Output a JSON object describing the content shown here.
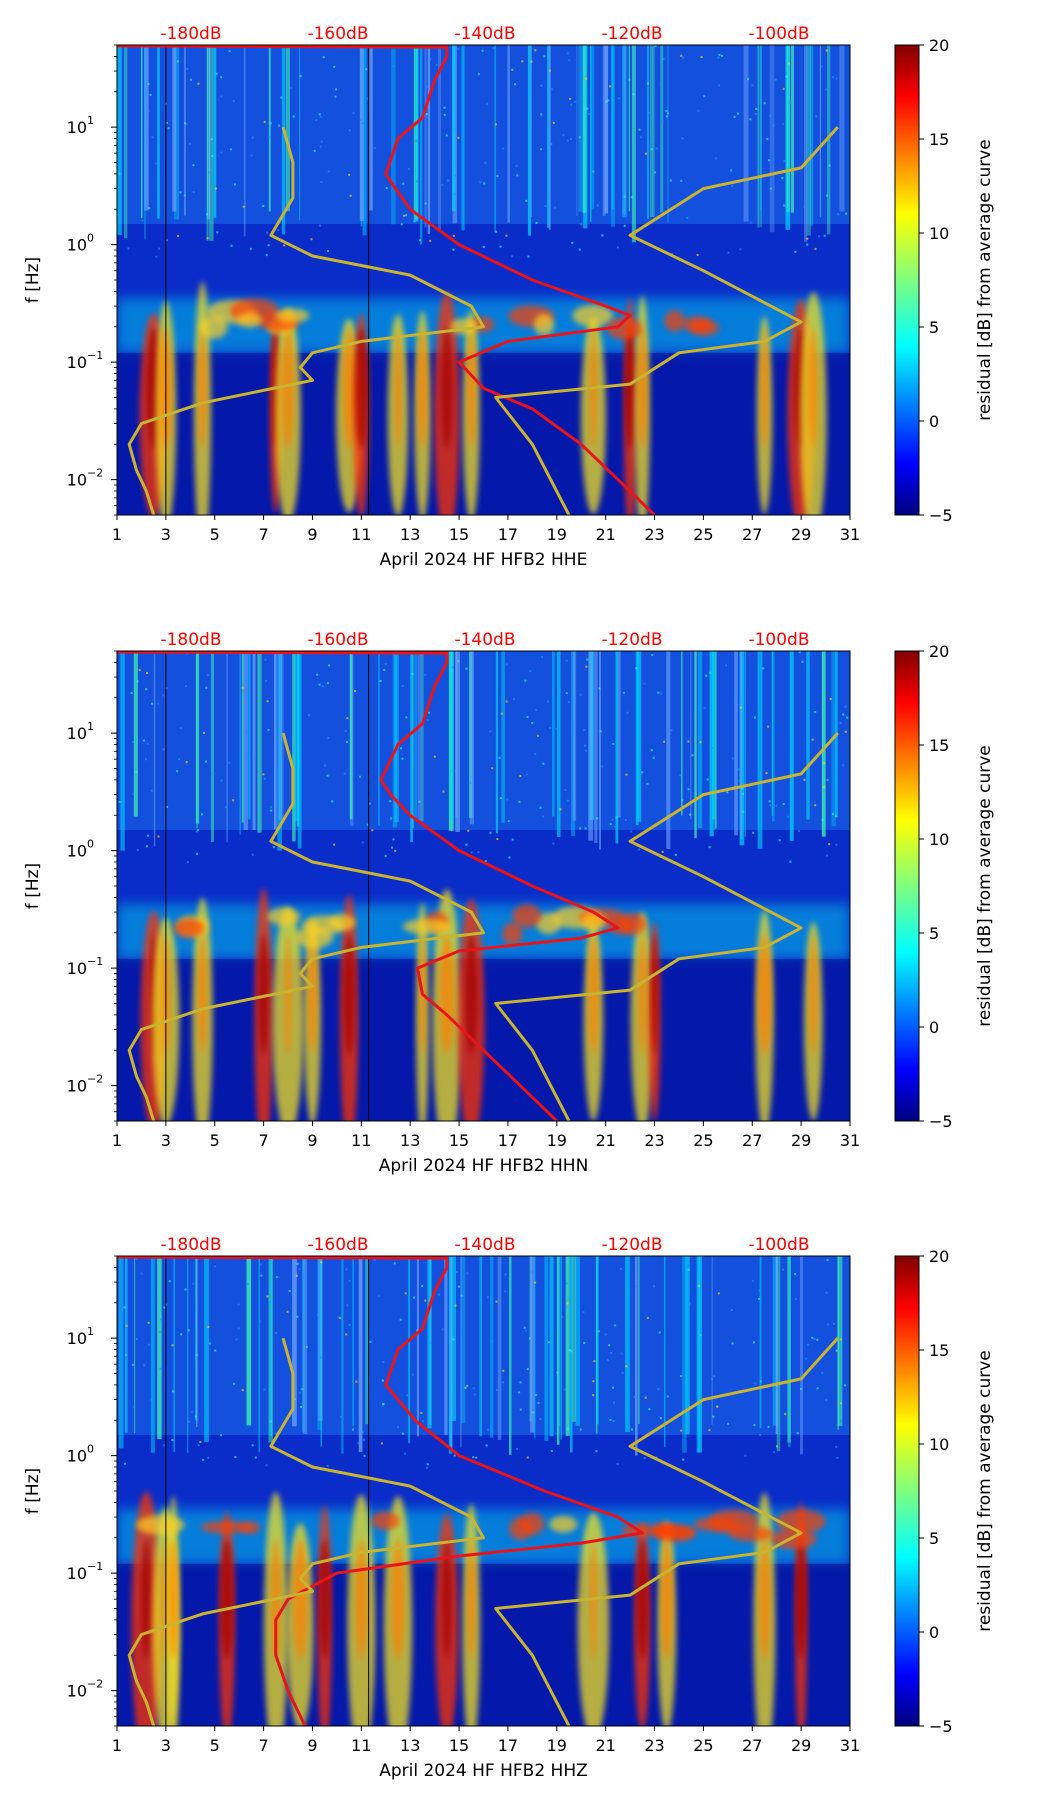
{
  "chart_data": [
    {
      "type": "heatmap",
      "xlabel": "April 2024 HF HFB2  HHE",
      "ylabel": "f [Hz]",
      "x_ticks": [
        "1",
        "3",
        "5",
        "7",
        "9",
        "11",
        "13",
        "15",
        "17",
        "19",
        "21",
        "23",
        "25",
        "27",
        "29",
        "31"
      ],
      "xlim": [
        1,
        31
      ],
      "ylim": [
        0.005,
        50
      ],
      "y_scale": "log",
      "y_ticks": [
        {
          "value": 10,
          "label": "10",
          "exp": "1"
        },
        {
          "value": 1,
          "label": "10",
          "exp": "0"
        },
        {
          "value": 0.1,
          "label": "10",
          "exp": "−1"
        },
        {
          "value": 0.01,
          "label": "10",
          "exp": "−2"
        }
      ],
      "top_labels": [
        "-180dB",
        "-160dB",
        "-140dB",
        "-120dB",
        "-100dB"
      ],
      "colorbar": {
        "label": "residual [dB] from average curve",
        "min": -5,
        "max": 20,
        "ticks": [
          "20",
          "15",
          "10",
          "5",
          "0",
          "−5"
        ]
      },
      "series": [
        {
          "name": "red-curve",
          "color": "#e8141c",
          "points": [
            [
              1,
              49
            ],
            [
              14.5,
              48
            ],
            [
              14.5,
              40
            ],
            [
              14,
              25
            ],
            [
              13.5,
              12
            ],
            [
              12.5,
              8
            ],
            [
              12,
              4
            ],
            [
              12.4,
              3
            ],
            [
              13,
              2
            ],
            [
              15,
              1
            ],
            [
              18,
              0.5
            ],
            [
              21,
              0.3
            ],
            [
              22,
              0.25
            ],
            [
              21.5,
              0.2
            ],
            [
              17,
              0.15
            ],
            [
              15,
              0.1
            ],
            [
              16,
              0.06
            ],
            [
              18,
              0.04
            ],
            [
              20,
              0.02
            ],
            [
              21.5,
              0.01
            ],
            [
              23,
              0.005
            ]
          ]
        },
        {
          "name": "olive-curve",
          "color": "#c8b432",
          "points": [
            [
              7.8,
              10
            ],
            [
              8.2,
              5
            ],
            [
              8.2,
              2.5
            ],
            [
              7.3,
              1.2
            ],
            [
              9,
              0.8
            ],
            [
              13,
              0.55
            ],
            [
              15.5,
              0.3
            ],
            [
              16,
              0.2
            ],
            [
              11,
              0.15
            ],
            [
              9,
              0.12
            ],
            [
              8.5,
              0.09
            ],
            [
              9,
              0.07
            ],
            [
              4.5,
              0.045
            ],
            [
              2,
              0.03
            ],
            [
              1.5,
              0.02
            ],
            [
              1.8,
              0.012
            ],
            [
              2.2,
              0.008
            ],
            [
              2.5,
              0.005
            ]
          ]
        },
        {
          "name": "olive-curve-right",
          "color": "#c8b432",
          "points": [
            [
              30.5,
              10
            ],
            [
              29,
              4.5
            ],
            [
              25,
              3
            ],
            [
              22,
              1.2
            ],
            [
              25,
              0.6
            ],
            [
              29,
              0.22
            ],
            [
              27.5,
              0.15
            ],
            [
              24,
              0.12
            ],
            [
              22,
              0.065
            ],
            [
              16.5,
              0.05
            ],
            [
              18,
              0.02
            ],
            [
              19.5,
              0.005
            ]
          ]
        }
      ]
    },
    {
      "type": "heatmap",
      "xlabel": "April 2024 HF HFB2  HHN",
      "ylabel": "f [Hz]",
      "x_ticks": [
        "1",
        "3",
        "5",
        "7",
        "9",
        "11",
        "13",
        "15",
        "17",
        "19",
        "21",
        "23",
        "25",
        "27",
        "29",
        "31"
      ],
      "xlim": [
        1,
        31
      ],
      "ylim": [
        0.005,
        50
      ],
      "y_scale": "log",
      "y_ticks": [
        {
          "value": 10,
          "label": "10",
          "exp": "1"
        },
        {
          "value": 1,
          "label": "10",
          "exp": "0"
        },
        {
          "value": 0.1,
          "label": "10",
          "exp": "−1"
        },
        {
          "value": 0.01,
          "label": "10",
          "exp": "−2"
        }
      ],
      "top_labels": [
        "-180dB",
        "-160dB",
        "-140dB",
        "-120dB",
        "-100dB"
      ],
      "colorbar": {
        "label": "residual [dB] from average curve",
        "min": -5,
        "max": 20,
        "ticks": [
          "20",
          "15",
          "10",
          "5",
          "0",
          "−5"
        ]
      },
      "series": [
        {
          "name": "red-curve",
          "color": "#e8141c",
          "points": [
            [
              1,
              49
            ],
            [
              14.5,
              48
            ],
            [
              14.5,
              40
            ],
            [
              14,
              25
            ],
            [
              13.5,
              12
            ],
            [
              12.5,
              8
            ],
            [
              11.8,
              4
            ],
            [
              12.2,
              3
            ],
            [
              13,
              2
            ],
            [
              15,
              1
            ],
            [
              18,
              0.5
            ],
            [
              20.5,
              0.3
            ],
            [
              21.5,
              0.22
            ],
            [
              20,
              0.18
            ],
            [
              15,
              0.14
            ],
            [
              13.3,
              0.1
            ],
            [
              13.5,
              0.06
            ],
            [
              14.5,
              0.04
            ],
            [
              16,
              0.02
            ],
            [
              17.5,
              0.01
            ],
            [
              19,
              0.005
            ]
          ]
        },
        {
          "name": "olive-curve",
          "color": "#c8b432",
          "points": [
            [
              7.8,
              10
            ],
            [
              8.2,
              5
            ],
            [
              8.2,
              2.5
            ],
            [
              7.3,
              1.2
            ],
            [
              9,
              0.8
            ],
            [
              13,
              0.55
            ],
            [
              15.5,
              0.3
            ],
            [
              16,
              0.2
            ],
            [
              11,
              0.15
            ],
            [
              9,
              0.12
            ],
            [
              8.5,
              0.09
            ],
            [
              9,
              0.07
            ],
            [
              4.5,
              0.045
            ],
            [
              2,
              0.03
            ],
            [
              1.5,
              0.02
            ],
            [
              1.8,
              0.012
            ],
            [
              2.2,
              0.008
            ],
            [
              2.5,
              0.005
            ]
          ]
        },
        {
          "name": "olive-curve-right",
          "color": "#c8b432",
          "points": [
            [
              30.5,
              10
            ],
            [
              29,
              4.5
            ],
            [
              25,
              3
            ],
            [
              22,
              1.2
            ],
            [
              25,
              0.6
            ],
            [
              29,
              0.22
            ],
            [
              27.5,
              0.15
            ],
            [
              24,
              0.12
            ],
            [
              22,
              0.065
            ],
            [
              16.5,
              0.05
            ],
            [
              18,
              0.02
            ],
            [
              19.5,
              0.005
            ]
          ]
        }
      ]
    },
    {
      "type": "heatmap",
      "xlabel": "April 2024 HF HFB2  HHZ",
      "ylabel": "f [Hz]",
      "x_ticks": [
        "1",
        "3",
        "5",
        "7",
        "9",
        "11",
        "13",
        "15",
        "17",
        "19",
        "21",
        "23",
        "25",
        "27",
        "29",
        "31"
      ],
      "xlim": [
        1,
        31
      ],
      "ylim": [
        0.005,
        50
      ],
      "y_scale": "log",
      "y_ticks": [
        {
          "value": 10,
          "label": "10",
          "exp": "1"
        },
        {
          "value": 1,
          "label": "10",
          "exp": "0"
        },
        {
          "value": 0.1,
          "label": "10",
          "exp": "−1"
        },
        {
          "value": 0.01,
          "label": "10",
          "exp": "−2"
        }
      ],
      "top_labels": [
        "-180dB",
        "-160dB",
        "-140dB",
        "-120dB",
        "-100dB"
      ],
      "colorbar": {
        "label": "residual [dB] from average curve",
        "min": -5,
        "max": 20,
        "ticks": [
          "20",
          "15",
          "10",
          "5",
          "0",
          "−5"
        ]
      },
      "series": [
        {
          "name": "red-curve",
          "color": "#e8141c",
          "points": [
            [
              1,
              49
            ],
            [
              14.5,
              48
            ],
            [
              14.5,
              40
            ],
            [
              14,
              25
            ],
            [
              13.5,
              12
            ],
            [
              12.5,
              8
            ],
            [
              12,
              4
            ],
            [
              12.5,
              3
            ],
            [
              13.2,
              2
            ],
            [
              15,
              1
            ],
            [
              18.5,
              0.5
            ],
            [
              21.5,
              0.3
            ],
            [
              22.5,
              0.22
            ],
            [
              20,
              0.18
            ],
            [
              15,
              0.14
            ],
            [
              10,
              0.1
            ],
            [
              8,
              0.06
            ],
            [
              7.5,
              0.04
            ],
            [
              7.5,
              0.02
            ],
            [
              8,
              0.01
            ],
            [
              8.7,
              0.005
            ]
          ]
        },
        {
          "name": "olive-curve",
          "color": "#c8b432",
          "points": [
            [
              7.8,
              10
            ],
            [
              8.2,
              5
            ],
            [
              8.2,
              2.5
            ],
            [
              7.3,
              1.2
            ],
            [
              9,
              0.8
            ],
            [
              13,
              0.55
            ],
            [
              15.5,
              0.3
            ],
            [
              16,
              0.2
            ],
            [
              11,
              0.15
            ],
            [
              9,
              0.12
            ],
            [
              8.5,
              0.09
            ],
            [
              9,
              0.07
            ],
            [
              4.5,
              0.045
            ],
            [
              2,
              0.03
            ],
            [
              1.5,
              0.02
            ],
            [
              1.8,
              0.012
            ],
            [
              2.2,
              0.008
            ],
            [
              2.5,
              0.005
            ]
          ]
        },
        {
          "name": "olive-curve-right",
          "color": "#c8b432",
          "points": [
            [
              30.5,
              10
            ],
            [
              29,
              4.5
            ],
            [
              25,
              3
            ],
            [
              22,
              1.2
            ],
            [
              25,
              0.6
            ],
            [
              29,
              0.22
            ],
            [
              27.5,
              0.15
            ],
            [
              24,
              0.12
            ],
            [
              22,
              0.065
            ],
            [
              16.5,
              0.05
            ],
            [
              18,
              0.02
            ],
            [
              19.5,
              0.005
            ]
          ]
        }
      ]
    }
  ]
}
